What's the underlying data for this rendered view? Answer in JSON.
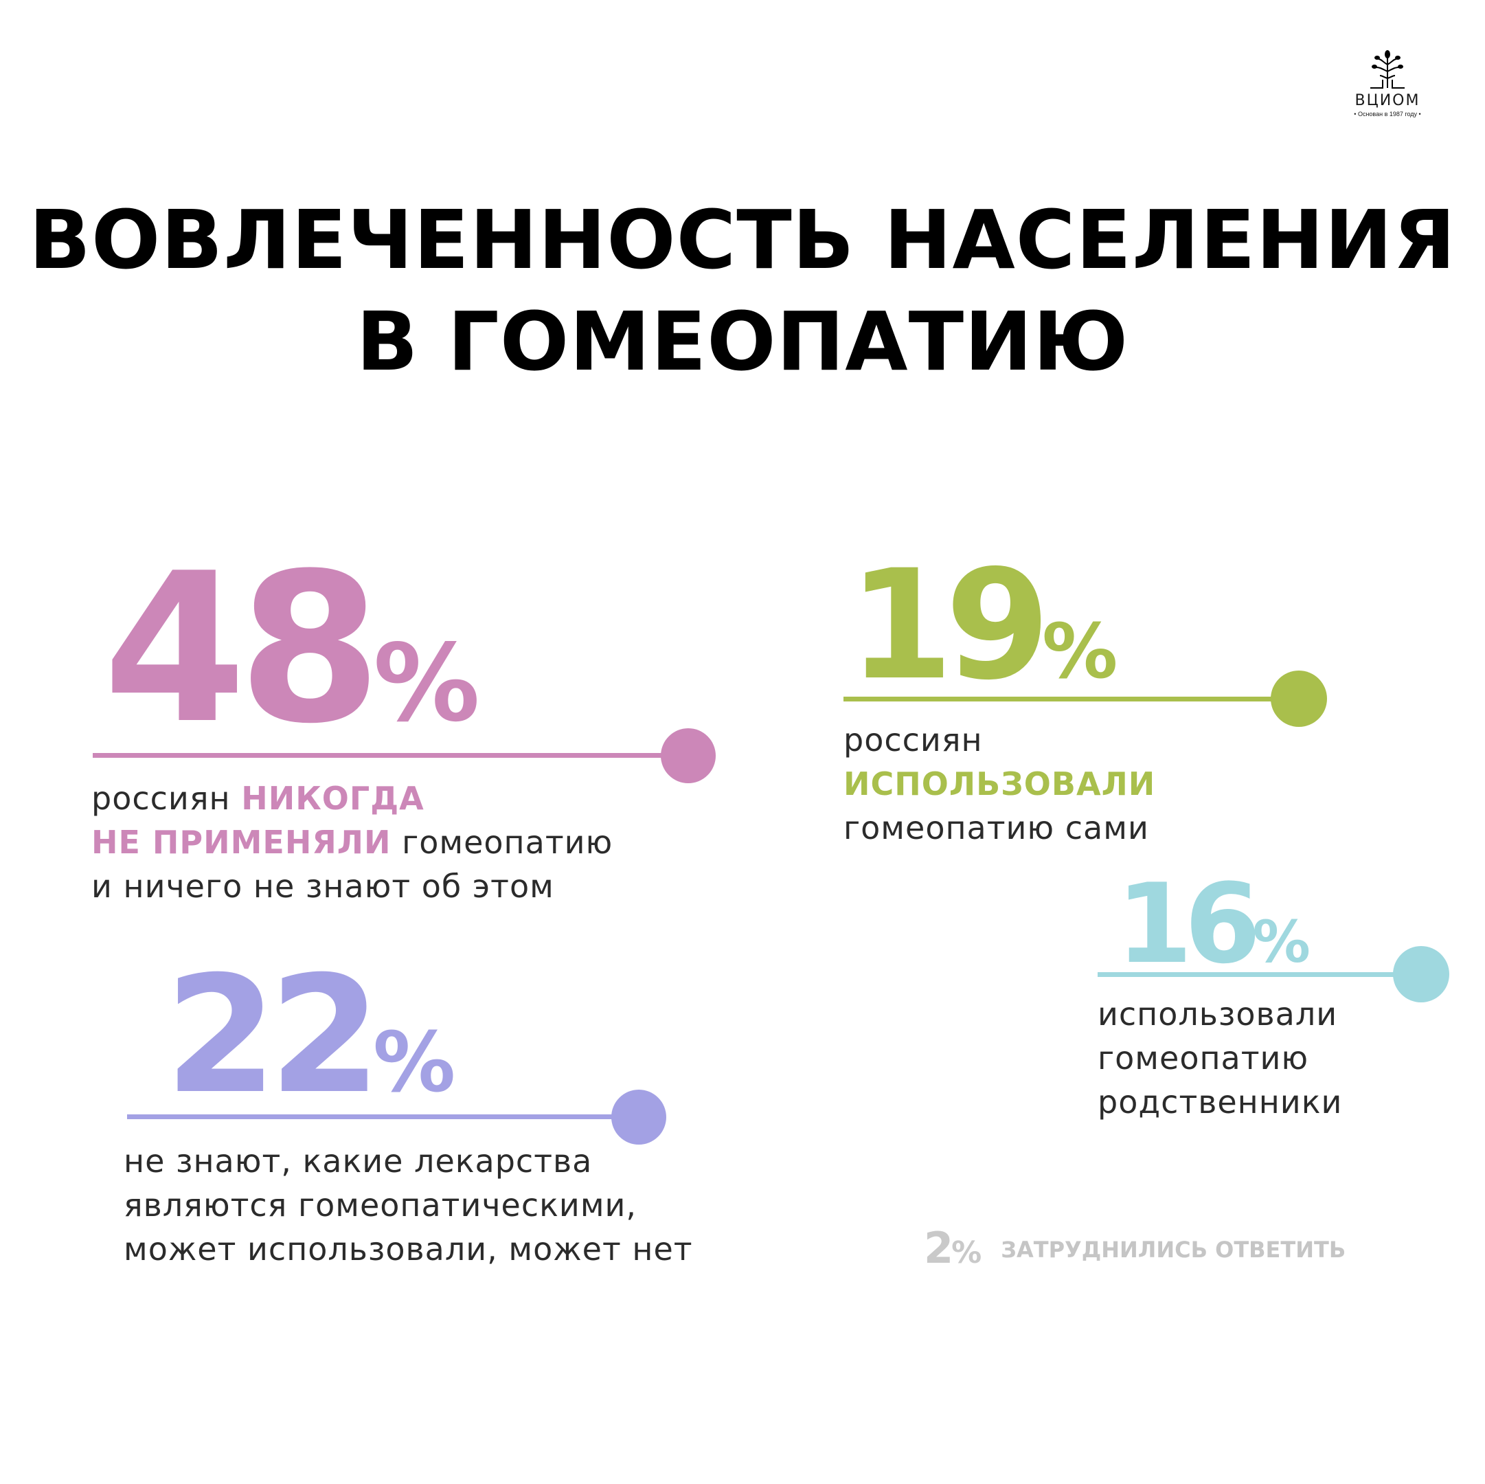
{
  "logo": {
    "name": "ВЦИОМ",
    "sub": "• Основан в 1987 году •"
  },
  "title": {
    "line1": "ВОВЛЕЧЕННОСТЬ НАСЕЛЕНИЯ",
    "line2": "В ГОМЕОПАТИЮ"
  },
  "colors": {
    "pink": "#cc87b8",
    "green": "#a9bf4c",
    "purple": "#a3a1e4",
    "teal": "#9fd8df",
    "grey": "#c9c9c9"
  },
  "stats": {
    "never": {
      "value": "48",
      "percent": 48,
      "pct": "%",
      "t1": "россиян ",
      "h1": "НИКОГДА",
      "h2": "НЕ ПРИМЕНЯЛИ",
      "t2": " гомеопатию",
      "t3": "и ничего не знают об этом"
    },
    "self": {
      "value": "19",
      "percent": 19,
      "pct": "%",
      "t1": "россиян",
      "h1": "ИСПОЛЬЗОВАЛИ",
      "t2": "гомеопатию сами"
    },
    "unknown": {
      "value": "22",
      "percent": 22,
      "pct": "%",
      "t1": "не знают, какие лекарства",
      "t2": "являются гомеопатическими,",
      "t3": "может использовали, может нет"
    },
    "relatives": {
      "value": "16",
      "percent": 16,
      "pct": "%",
      "t1": "использовали",
      "t2": "гомеопатию",
      "t3": "родственники"
    },
    "hard": {
      "value": "2",
      "percent": 2,
      "pct": "%",
      "label": "ЗАТРУДНИЛИСЬ ОТВЕТИТЬ"
    }
  }
}
